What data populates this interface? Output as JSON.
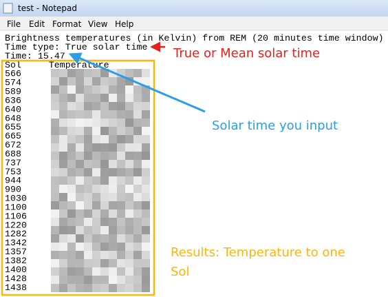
{
  "window": {
    "title": "test - Notepad",
    "menu": [
      "File",
      "Edit",
      "Format",
      "View",
      "Help"
    ]
  },
  "document": {
    "lines": [
      "Brightness temperatures (in Kelvin) from REM (20 minutes time window)",
      "Time type: True solar time",
      "Time: 15.47"
    ],
    "table": {
      "columns": [
        "Sol",
        "Temperature"
      ],
      "sols": [
        "566",
        "574",
        "589",
        "636",
        "640",
        "648",
        "655",
        "665",
        "672",
        "688",
        "737",
        "753",
        "944",
        "990",
        "1030",
        "1100",
        "1106",
        "1220",
        "1282",
        "1342",
        "1357",
        "1382",
        "1400",
        "1428",
        "1438"
      ]
    }
  },
  "annotations": {
    "time_type": "True or Mean solar time",
    "time_input": "Solar time you input",
    "results": [
      "Results: Temperature to one",
      "Sol"
    ]
  }
}
